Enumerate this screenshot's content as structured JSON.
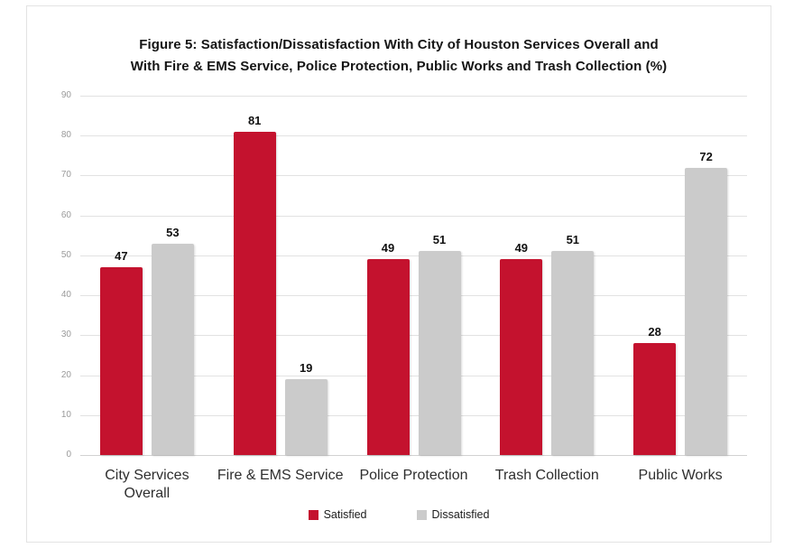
{
  "figure": {
    "title_line1": "Figure 5: Satisfaction/Dissatisfaction With City of Houston Services Overall and",
    "title_line2": "With Fire & EMS Service, Police Protection, Public Works and Trash Collection (%)"
  },
  "chart_data": {
    "type": "bar",
    "categories": [
      "City Services Overall",
      "Fire & EMS Service",
      "Police Protection",
      "Trash Collection",
      "Public Works"
    ],
    "series": [
      {
        "name": "Satisfied",
        "color": "#c4122e",
        "values": [
          47,
          81,
          49,
          49,
          28
        ]
      },
      {
        "name": "Dissatisfied",
        "color": "#cbcbcb",
        "values": [
          53,
          19,
          51,
          51,
          72
        ]
      }
    ],
    "title": "Figure 5: Satisfaction/Dissatisfaction With City of Houston Services Overall and With Fire & EMS Service, Police Protection, Public Works and Trash Collection (%)",
    "xlabel": "",
    "ylabel": "",
    "ylim": [
      0,
      90
    ],
    "ytick_step": 10,
    "yticks": [
      0,
      10,
      20,
      30,
      40,
      50,
      60,
      70,
      80,
      90
    ],
    "grid": true,
    "data_labels": true,
    "legend_position": "bottom",
    "colors": {
      "gridline": "#e2e2e2",
      "axis_line": "#d2d2d2",
      "tick_label": "#9a9a9a",
      "title_text": "#151515",
      "category_label": "#2e2e2e",
      "frame_border": "#e3e3e3",
      "background": "#ffffff"
    }
  }
}
